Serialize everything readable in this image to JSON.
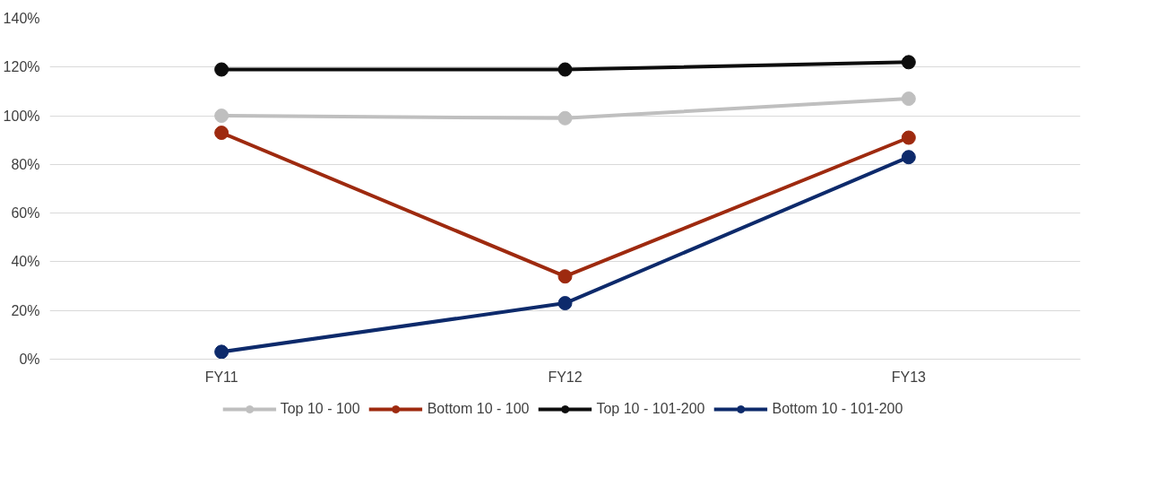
{
  "chart_data": {
    "type": "line",
    "categories": [
      "FY11",
      "FY12",
      "FY13"
    ],
    "series": [
      {
        "name": "Top 10 - 100",
        "color": "#bfbfbf",
        "values": [
          100,
          99,
          107
        ]
      },
      {
        "name": "Bottom 10 - 100",
        "color": "#9e2a0f",
        "values": [
          93,
          34,
          91
        ]
      },
      {
        "name": "Top 10 - 101-200",
        "color": "#0d0d0d",
        "values": [
          119,
          119,
          122
        ]
      },
      {
        "name": "Bottom 10 - 101-200",
        "color": "#0d2a6b",
        "values": [
          3,
          23,
          83
        ]
      }
    ],
    "ylim": [
      0,
      140
    ],
    "yticks": [
      {
        "value": 0,
        "label": "0%"
      },
      {
        "value": 20,
        "label": "20%"
      },
      {
        "value": 40,
        "label": "40%"
      },
      {
        "value": 60,
        "label": "60%"
      },
      {
        "value": 80,
        "label": "80%"
      },
      {
        "value": 100,
        "label": "100%"
      },
      {
        "value": 120,
        "label": "120%"
      },
      {
        "value": 140,
        "label": "140%"
      }
    ],
    "grid": "y",
    "legend": "bottom",
    "marker": "circle",
    "line_style": "solid"
  }
}
